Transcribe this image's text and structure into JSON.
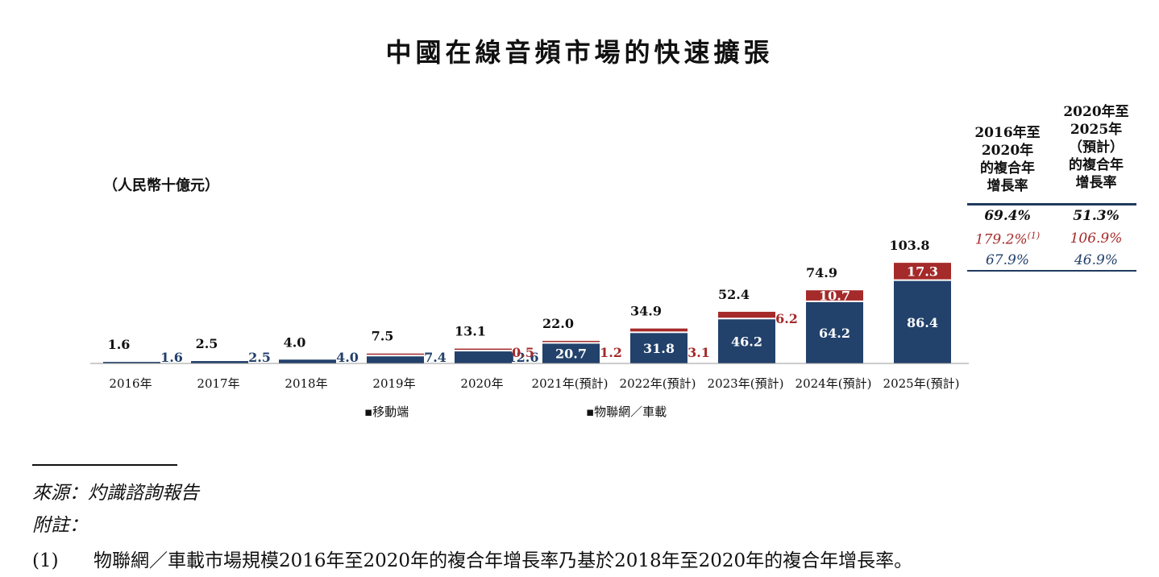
{
  "title": "中國在線音頻市場的快速擴張",
  "unit": "（人民幣十億元）",
  "chart_data": {
    "type": "bar",
    "stacked": true,
    "categories": [
      "2016年",
      "2017年",
      "2018年",
      "2019年",
      "2020年",
      "2021年(預計)",
      "2022年(預計)",
      "2023年(預計)",
      "2024年(預計)",
      "2025年(預計)"
    ],
    "series": [
      {
        "name": "移動端",
        "color": "#22416b",
        "values": [
          1.6,
          2.5,
          4.0,
          7.4,
          12.6,
          20.7,
          31.8,
          46.2,
          64.2,
          86.4
        ]
      },
      {
        "name": "物聯網／車載",
        "color": "#a52a2a",
        "values": [
          0,
          0,
          0,
          0.1,
          0.5,
          1.2,
          3.1,
          6.2,
          10.7,
          17.3
        ]
      }
    ],
    "segment_labels": {
      "移動端": [
        "1.6",
        "2.5",
        "4.0",
        "7.4",
        "12.6",
        "20.7",
        "31.8",
        "46.2",
        "64.2",
        "86.4"
      ],
      "物聯網／車載": [
        "",
        "",
        "",
        "",
        "0.5",
        "1.2",
        "3.1",
        "6.2",
        "10.7",
        "17.3"
      ]
    },
    "totals": [
      "1.6",
      "2.5",
      "4.0",
      "7.5",
      "13.1",
      "22.0",
      "34.9",
      "52.4",
      "74.9",
      "103.8"
    ],
    "ylim": [
      0,
      103.8
    ],
    "grid": false,
    "legend_position": "bottom",
    "legend": [
      "▪移動端",
      "▪物聯網／車載"
    ]
  },
  "cagr": {
    "col1_header": [
      "2016年至",
      "2020年",
      "的複合年",
      "增長率"
    ],
    "col2_header": [
      "2020年至",
      "2025年",
      "（預計）",
      "的複合年",
      "增長率"
    ],
    "rows": [
      {
        "col1": "69.4%",
        "col2": "51.3%",
        "color": "#111111",
        "bold": true
      },
      {
        "col1": "179.2%",
        "col1_sup": "(1)",
        "col2": "106.9%",
        "color": "#a52a2a",
        "bold": false
      },
      {
        "col1": "67.9%",
        "col2": "46.9%",
        "color": "#22416b",
        "bold": false
      }
    ]
  },
  "footer": {
    "source": "來源：灼識諮詢報告",
    "note_label": "附註：",
    "note_num": "(1)",
    "note_text": "物聯網／車載市場規模2016年至2020年的複合年增長率乃基於2018年至2020年的複合年增長率。"
  }
}
